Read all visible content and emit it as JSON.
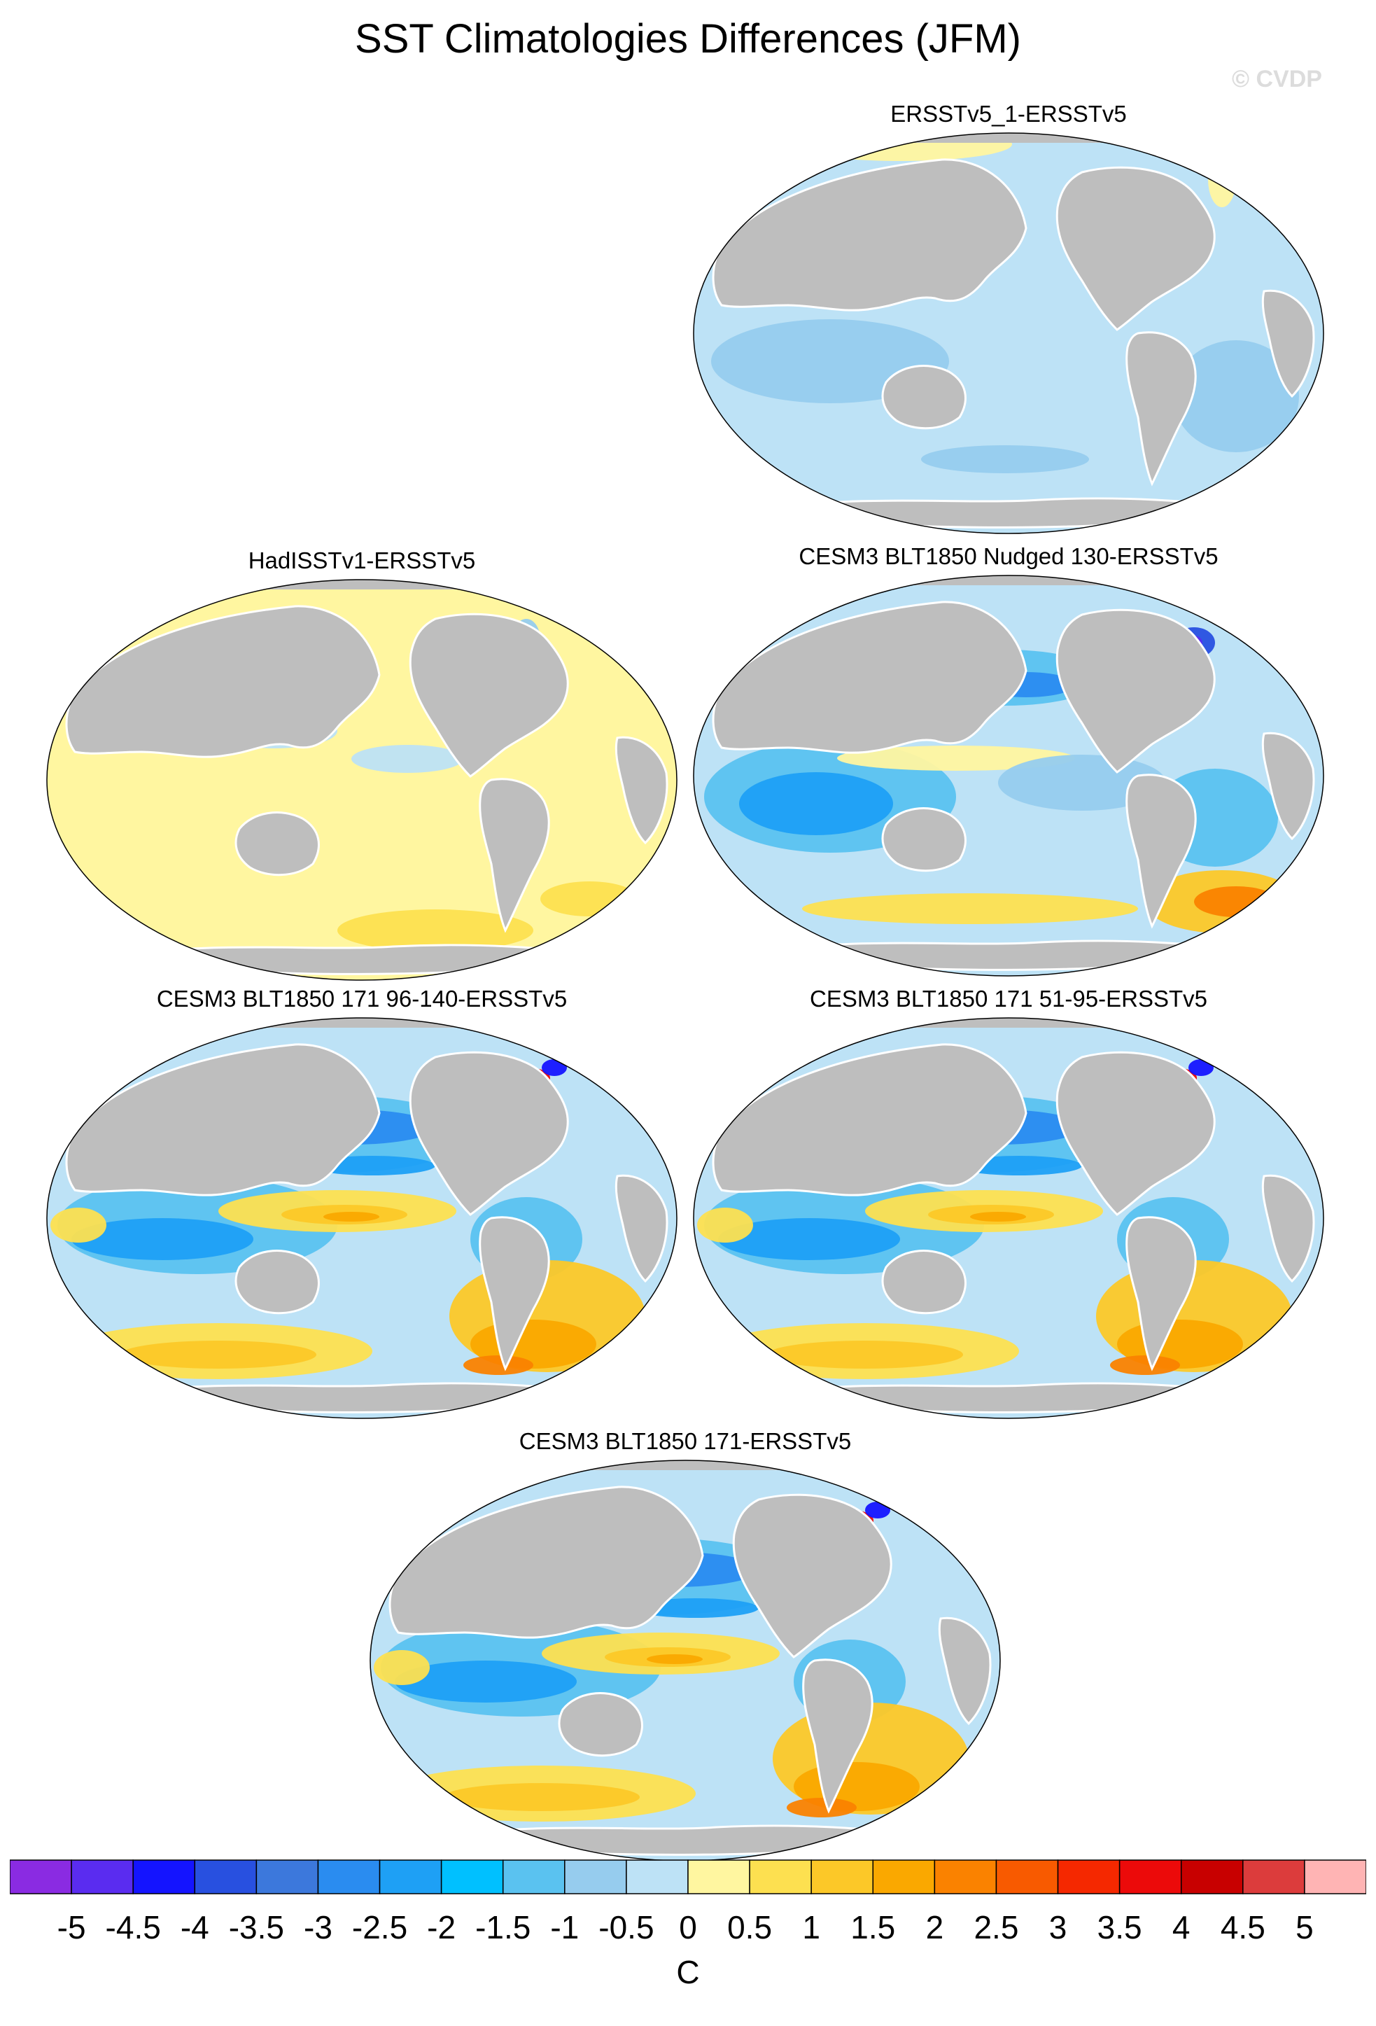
{
  "title": "SST Climatologies Differences (JFM)",
  "watermark": "© CVDP",
  "panels": [
    {
      "title": "ERSSTv5_1-ERSSTv5",
      "style": "weak-cool"
    },
    {
      "title": "HadISSTv1-ERSSTv5",
      "style": "weak-warm"
    },
    {
      "title": "CESM3 BLT1850 Nudged 130-ERSSTv5",
      "style": "model-moderate"
    },
    {
      "title": "CESM3 BLT1850 171 96-140-ERSSTv5",
      "style": "model-strong"
    },
    {
      "title": "CESM3 BLT1850 171 51-95-ERSSTv5",
      "style": "model-strong"
    },
    {
      "title": "CESM3 BLT1850 171-ERSSTv5",
      "style": "model-strong"
    }
  ],
  "colorbar": {
    "units": "C",
    "labels": [
      "-5",
      "-4.5",
      "-4",
      "-3.5",
      "-3",
      "-2.5",
      "-2",
      "-1.5",
      "-1",
      "-0.5",
      "0",
      "0.5",
      "1",
      "1.5",
      "2",
      "2.5",
      "3",
      "3.5",
      "4",
      "4.5",
      "5"
    ],
    "colors": [
      "#8a2be2",
      "#5a2cf0",
      "#1414ff",
      "#2850e0",
      "#3c78dc",
      "#2a8cf0",
      "#1ea0f5",
      "#00c0ff",
      "#5ac2f0",
      "#96ccee",
      "#bde2f6",
      "#fff6a0",
      "#fde050",
      "#fcc828",
      "#faa800",
      "#fa8200",
      "#f85a00",
      "#f52800",
      "#ec0a0a",
      "#c80000",
      "#dc3c3c",
      "#ffb4b4"
    ]
  },
  "colors": {
    "land": "#bebebe",
    "coast": "#ffffff",
    "ocean_near_zero_cool": "#bde2f6",
    "ocean_near_zero_warm": "#fff6a0"
  }
}
